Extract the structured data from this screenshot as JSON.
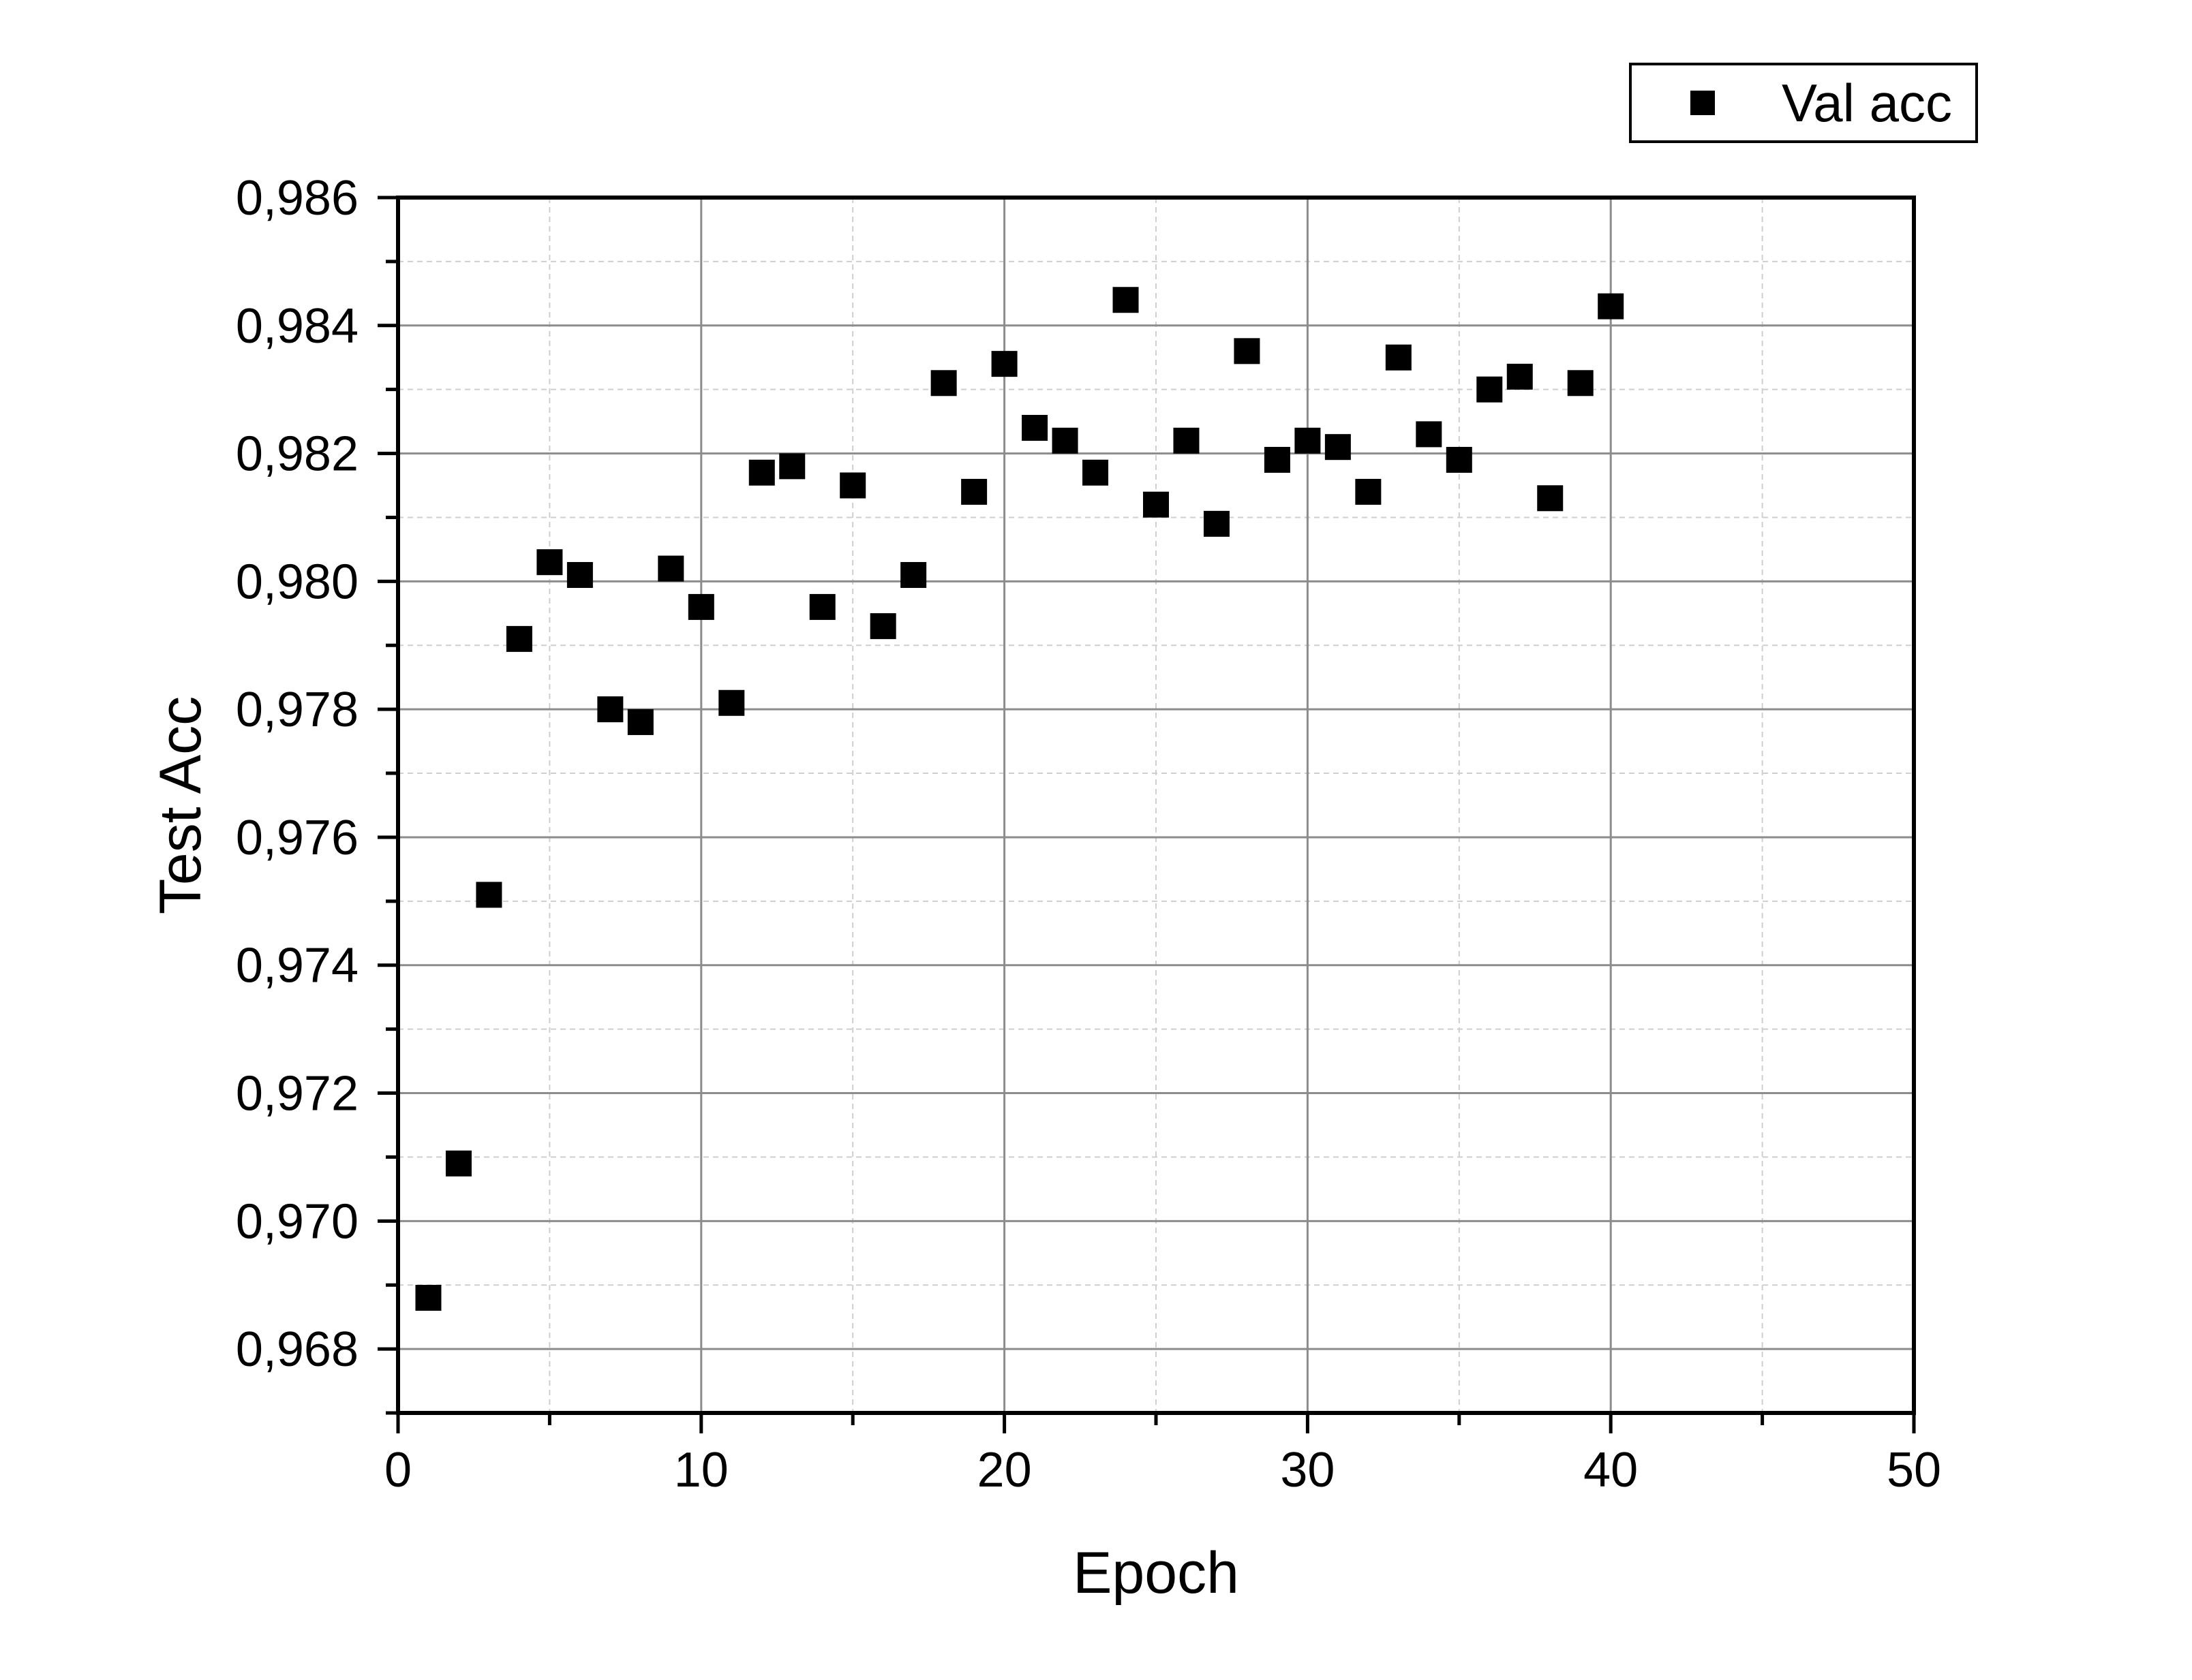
{
  "chart_data": {
    "type": "scatter",
    "title": "",
    "xlabel": "Epoch",
    "ylabel": "Test Acc",
    "xlim": [
      0,
      50
    ],
    "ylim": [
      0.967,
      0.986
    ],
    "x_ticks": [
      0,
      10,
      20,
      30,
      40,
      50
    ],
    "x_tick_labels": [
      "0",
      "10",
      "20",
      "30",
      "40",
      "50"
    ],
    "y_ticks": [
      0.968,
      0.97,
      0.972,
      0.974,
      0.976,
      0.978,
      0.98,
      0.982,
      0.984,
      0.986
    ],
    "y_tick_labels": [
      "0,968",
      "0,970",
      "0,972",
      "0,974",
      "0,976",
      "0,978",
      "0,980",
      "0,982",
      "0,984",
      "0,986"
    ],
    "grid": true,
    "legend": {
      "position": "top-right",
      "entries": [
        "Val acc"
      ]
    },
    "marker": "square",
    "colors": {
      "marker": "#000000",
      "major_grid": "#8c8c8c",
      "minor_grid": "#cfcfcf",
      "axis": "#000000"
    },
    "series": [
      {
        "name": "Val acc",
        "x": [
          1,
          2,
          3,
          4,
          5,
          6,
          7,
          8,
          9,
          10,
          11,
          12,
          13,
          14,
          15,
          16,
          17,
          18,
          19,
          20,
          21,
          22,
          23,
          24,
          25,
          26,
          27,
          28,
          29,
          30,
          31,
          32,
          33,
          34,
          35,
          36,
          37,
          38,
          39,
          40
        ],
        "y": [
          0.9688,
          0.9709,
          0.9751,
          0.9791,
          0.9803,
          0.9801,
          0.978,
          0.9778,
          0.9802,
          0.9796,
          0.9781,
          0.9817,
          0.9818,
          0.9796,
          0.9815,
          0.9793,
          0.9801,
          0.9831,
          0.9814,
          0.9834,
          0.9824,
          0.9822,
          0.9817,
          0.9844,
          0.9812,
          0.9822,
          0.9809,
          0.9836,
          0.9819,
          0.9822,
          0.9821,
          0.9814,
          0.9835,
          0.9823,
          0.9819,
          0.983,
          0.9832,
          0.9813,
          0.9831,
          0.9843
        ]
      }
    ]
  }
}
